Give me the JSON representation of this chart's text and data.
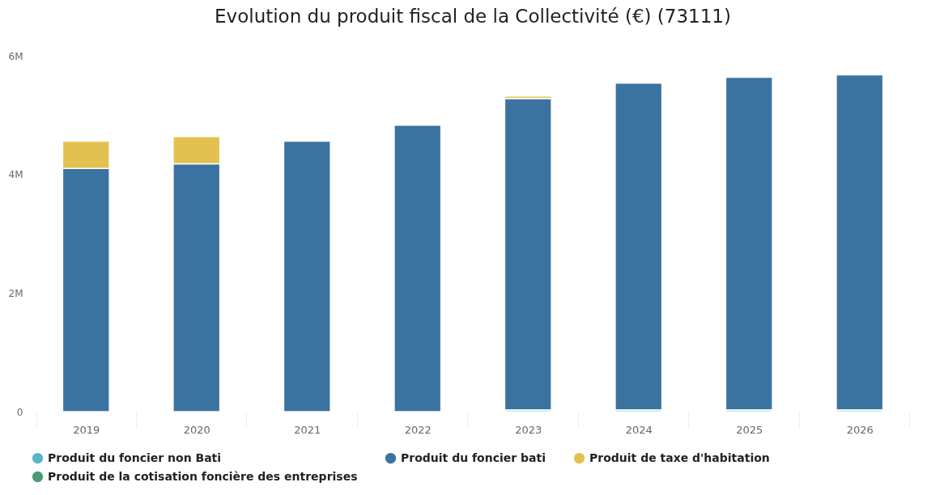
{
  "chart_data": {
    "type": "bar",
    "title": "Evolution du produit fiscal de la Collectivité (€) (73111)",
    "categories": [
      "2019",
      "2020",
      "2021",
      "2022",
      "2023",
      "2024",
      "2025",
      "2026"
    ],
    "stacked": true,
    "series": [
      {
        "name": "Produit du foncier non Bati",
        "color": "#5bb5c9",
        "values": [
          null,
          null,
          null,
          null,
          30000,
          30000,
          30000,
          30000
        ]
      },
      {
        "name": "Produit du foncier bati",
        "color": "#3a73a0",
        "values": [
          4100000,
          4180000,
          4560000,
          4830000,
          5250000,
          5510000,
          5610000,
          5650000
        ]
      },
      {
        "name": "Produit de taxe d'habitation",
        "color": "#e3c150",
        "values": [
          460000,
          460000,
          null,
          null,
          40000,
          null,
          null,
          null
        ]
      },
      {
        "name": "Produit de la cotisation foncière des entreprises",
        "color": "#4a9a78",
        "values": [
          null,
          null,
          null,
          null,
          null,
          null,
          null,
          null
        ]
      }
    ],
    "ylim": [
      0,
      6000000
    ],
    "yticks": [
      0,
      {
        "value": 2000000,
        "label": "2M"
      },
      {
        "value": 4000000,
        "label": "4M"
      },
      {
        "value": 6000000,
        "label": "6M"
      }
    ],
    "grid": false,
    "legend": "bottom"
  }
}
